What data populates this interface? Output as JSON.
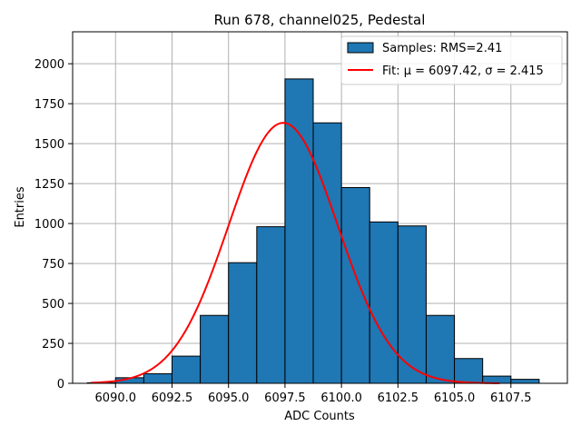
{
  "chart_data": {
    "type": "bar",
    "title": "Run 678, channel025, Pedestal",
    "xlabel": "ADC Counts",
    "ylabel": "Entries",
    "xlim": [
      6088.1,
      6110.0
    ],
    "ylim": [
      0,
      2200
    ],
    "grid": true,
    "legend_position": "top-right",
    "colors": {
      "bar_fill": "#1f77b4",
      "bar_edge": "#000000",
      "fit_line": "#ff0000",
      "grid": "#b0b0b0"
    },
    "x_ticks": [
      6090.0,
      6092.5,
      6095.0,
      6097.5,
      6100.0,
      6102.5,
      6105.0,
      6107.5
    ],
    "x_tick_labels": [
      "6090.0",
      "6092.5",
      "6095.0",
      "6097.5",
      "6100.0",
      "6102.5",
      "6105.0",
      "6107.5"
    ],
    "y_ticks": [
      0,
      250,
      500,
      750,
      1000,
      1250,
      1500,
      1750,
      2000
    ],
    "y_tick_labels": [
      "0",
      "250",
      "500",
      "750",
      "1000",
      "1250",
      "1500",
      "1750",
      "2000"
    ],
    "histogram": {
      "name": "Samples: RMS=2.41",
      "bin_width": 1.25,
      "bins": [
        {
          "x0": 6088.75,
          "value": 3
        },
        {
          "x0": 6090.0,
          "value": 35
        },
        {
          "x0": 6091.25,
          "value": 60
        },
        {
          "x0": 6092.5,
          "value": 170
        },
        {
          "x0": 6093.75,
          "value": 425
        },
        {
          "x0": 6095.0,
          "value": 755
        },
        {
          "x0": 6096.25,
          "value": 980
        },
        {
          "x0": 6097.5,
          "value": 1905
        },
        {
          "x0": 6098.75,
          "value": 1630
        },
        {
          "x0": 6100.0,
          "value": 1225
        },
        {
          "x0": 6101.25,
          "value": 1010
        },
        {
          "x0": 6102.5,
          "value": 985
        },
        {
          "x0": 6103.75,
          "value": 425
        },
        {
          "x0": 6105.0,
          "value": 155
        },
        {
          "x0": 6106.25,
          "value": 45
        },
        {
          "x0": 6107.5,
          "value": 25
        }
      ]
    },
    "fit": {
      "name": "Fit: μ = 6097.42, σ = 2.415",
      "mu": 6097.42,
      "sigma": 2.415,
      "amplitude": 1630,
      "x_range": [
        6088.9,
        6107.0
      ]
    }
  }
}
